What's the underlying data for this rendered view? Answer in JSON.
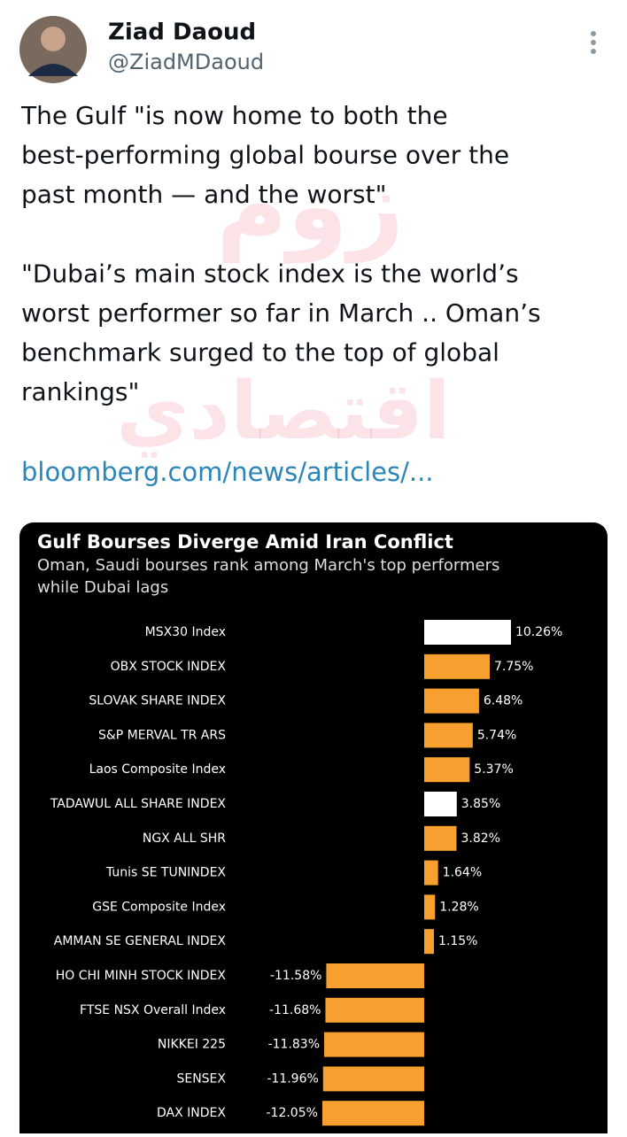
{
  "tweet": {
    "name": "Ziad Daoud",
    "handle": "@ZiadMDaoud",
    "paragraphs": [
      [
        "The Gulf \"is now home to both the",
        "best-performing global bourse over the",
        "past month — and the worst\""
      ],
      [
        "\"Dubai’s main stock index is the world’s",
        "worst performer so far in March .. Oman’s",
        "benchmark surged to the top of global",
        "rankings\""
      ]
    ],
    "link": "bloomberg.com/news/articles/...",
    "watermark": [
      "زوم",
      "اقتصادي"
    ]
  },
  "chart_data": {
    "type": "bar",
    "orientation": "horizontal",
    "title": "Gulf Bourses Diverge Amid Iran Conflict",
    "subtitle": [
      "Oman, Saudi bourses rank among March's top performers",
      "while Dubai lags"
    ],
    "categories": [
      "MSX30 Index",
      "OBX STOCK INDEX",
      "SLOVAK SHARE INDEX",
      "S&P MERVAL TR ARS",
      "Laos Composite Index",
      "TADAWUL ALL SHARE INDEX",
      "NGX ALL SHR",
      "Tunis SE TUNINDEX",
      "GSE Composite Index",
      "AMMAN SE GENERAL INDEX",
      "HO CHI MINH STOCK INDEX",
      "FTSE NSX Overall Index",
      "NIKKEI 225",
      "SENSEX",
      "DAX INDEX"
    ],
    "values": [
      10.26,
      7.75,
      6.48,
      5.74,
      5.37,
      3.85,
      3.82,
      1.64,
      1.28,
      1.15,
      -11.58,
      -11.68,
      -11.83,
      -11.96,
      -12.05
    ],
    "value_labels": [
      "10.26%",
      "7.75%",
      "6.48%",
      "5.74%",
      "5.37%",
      "3.85%",
      "3.82%",
      "1.64%",
      "1.28%",
      "1.15%",
      "-11.58%",
      "-11.68%",
      "-11.83%",
      "-11.96%",
      "-12.05%"
    ],
    "colors": [
      "#ffffff",
      "#f7a030",
      "#f7a030",
      "#f7a030",
      "#f7a030",
      "#ffffff",
      "#f7a030",
      "#f7a030",
      "#f7a030",
      "#f7a030",
      "#f7a030",
      "#f7a030",
      "#f7a030",
      "#f7a030",
      "#f7a030"
    ]
  }
}
